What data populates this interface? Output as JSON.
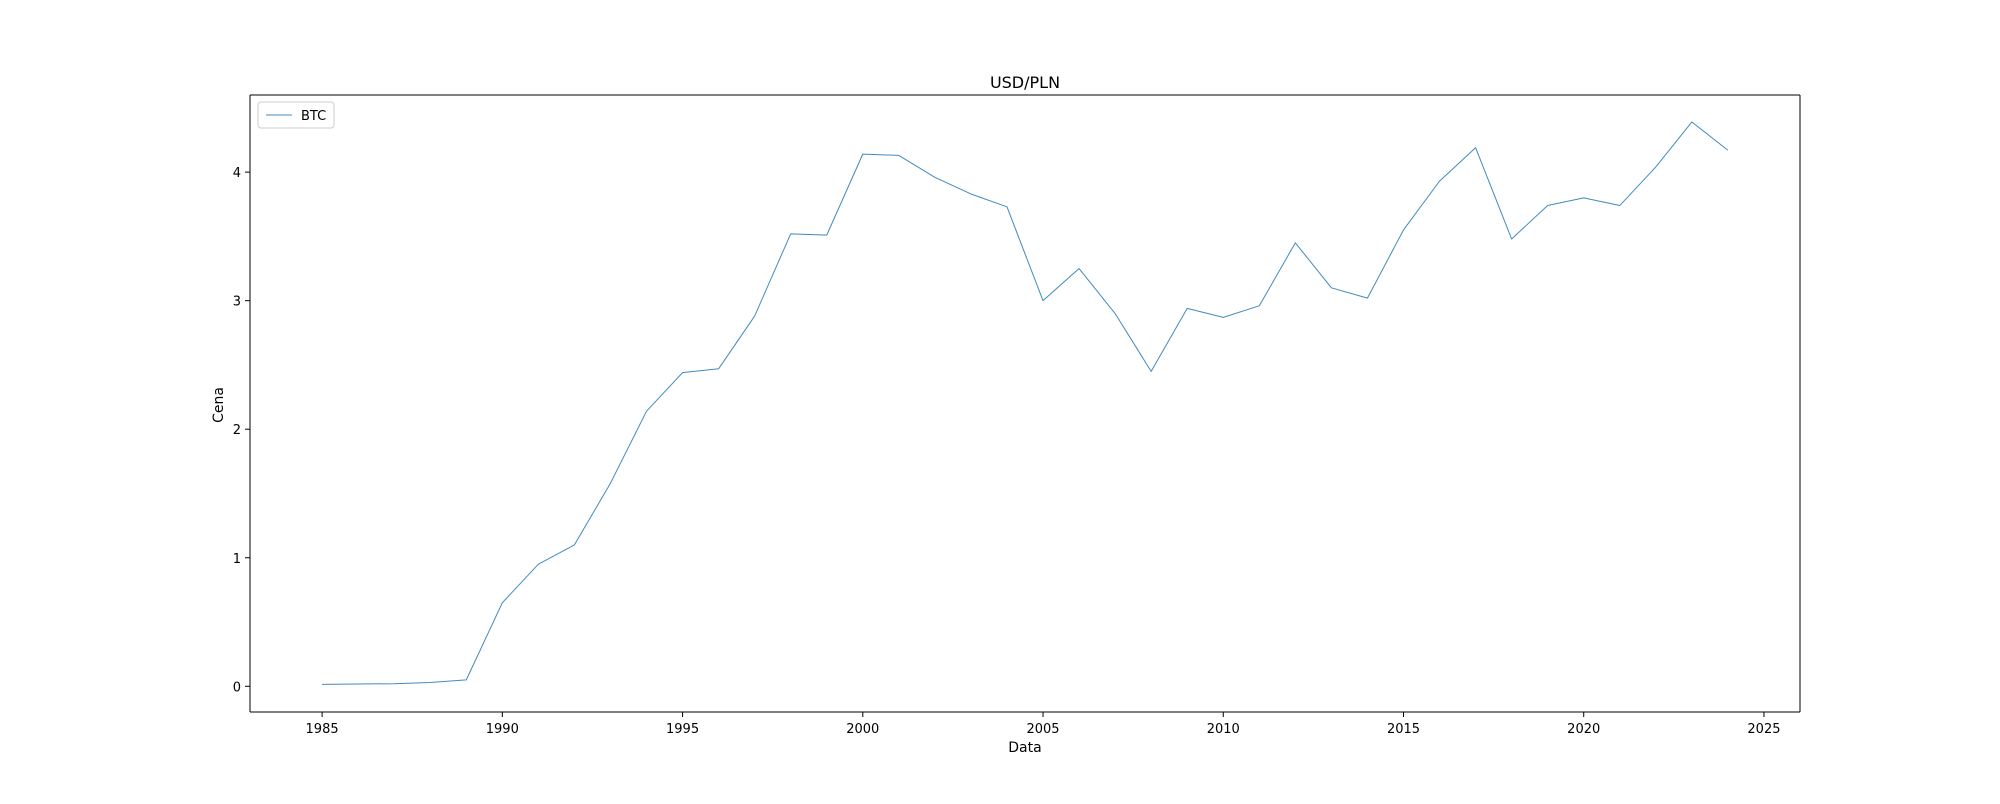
{
  "chart_data": {
    "type": "line",
    "title": "USD/PLN",
    "xlabel": "Data",
    "ylabel": "Cena",
    "xlim": [
      1983,
      2026
    ],
    "ylim": [
      -0.2,
      4.6
    ],
    "x_ticks": [
      1985,
      1990,
      1995,
      2000,
      2005,
      2010,
      2015,
      2020,
      2025
    ],
    "y_ticks": [
      0,
      1,
      2,
      3,
      4
    ],
    "grid": false,
    "legend_position": "top-left",
    "series": [
      {
        "name": "BTC",
        "color": "#1f77b4",
        "x": [
          1985,
          1986,
          1987,
          1988,
          1989,
          1990,
          1991,
          1992,
          1993,
          1994,
          1995,
          1996,
          1997,
          1998,
          1999,
          2000,
          2001,
          2002,
          2003,
          2004,
          2005,
          2006,
          2007,
          2008,
          2009,
          2010,
          2011,
          2012,
          2013,
          2014,
          2015,
          2016,
          2017,
          2018,
          2019,
          2020,
          2021,
          2022,
          2023,
          2024
        ],
        "y": [
          0.015,
          0.018,
          0.02,
          0.03,
          0.05,
          0.65,
          0.95,
          1.1,
          1.58,
          2.14,
          2.44,
          2.47,
          2.88,
          3.52,
          3.51,
          4.14,
          4.13,
          3.96,
          3.83,
          3.73,
          3.0,
          3.25,
          2.9,
          2.45,
          2.94,
          2.87,
          2.96,
          3.45,
          3.1,
          3.02,
          3.55,
          3.93,
          4.19,
          3.48,
          3.74,
          3.8,
          3.74,
          4.04,
          4.39,
          4.17
        ]
      }
    ]
  }
}
